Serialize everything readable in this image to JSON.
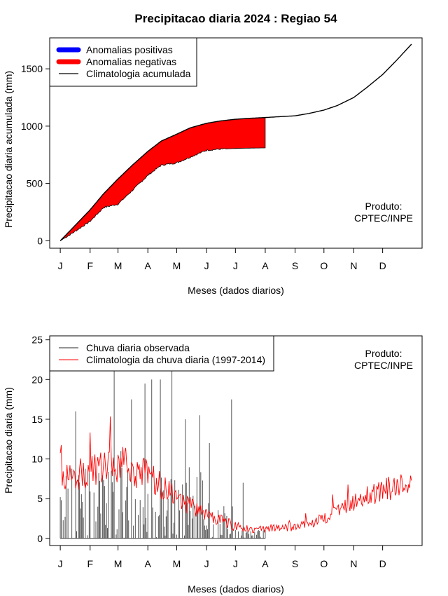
{
  "title": "Precipitacao diaria 2024 : Regiao 54",
  "month_ticks": [
    "J",
    "F",
    "M",
    "A",
    "M",
    "J",
    "J",
    "A",
    "S",
    "O",
    "N",
    "D"
  ],
  "colors": {
    "positive": "#0000ff",
    "negative": "#ff0000",
    "line": "#000000",
    "obs": "#555555",
    "clim": "#ff0000"
  },
  "chart_data": [
    {
      "type": "area",
      "title": "Precipitacao diaria 2024 : Regiao 54",
      "xlabel": "Meses (dados diarios)",
      "ylabel": "Precipitacao diaria acumulada (mm)",
      "yticks": [
        0,
        500,
        1000,
        1500
      ],
      "ylim": [
        -65,
        1770
      ],
      "xlim": [
        -11,
        376
      ],
      "legend": [
        "Anomalias positivas",
        "Anomalias negativas",
        "Climatologia acumulada"
      ],
      "legend_position": "top-left",
      "annotation": [
        "Produto:",
        "CPTEC/INPE"
      ],
      "climatology_cumulative": {
        "days": [
          0,
          15,
          31,
          45,
          60,
          75,
          91,
          105,
          121,
          135,
          152,
          166,
          182,
          196,
          213,
          227,
          244,
          258,
          274,
          288,
          305,
          319,
          335,
          349,
          365
        ],
        "values": [
          0,
          130,
          270,
          410,
          540,
          660,
          780,
          870,
          930,
          985,
          1025,
          1045,
          1060,
          1068,
          1075,
          1082,
          1090,
          1110,
          1140,
          1180,
          1250,
          1340,
          1450,
          1570,
          1715
        ]
      },
      "observed_cumulative": {
        "days": [
          0,
          15,
          31,
          45,
          60,
          75,
          91,
          105,
          121,
          135,
          152,
          166,
          182,
          196,
          213
        ],
        "values": [
          0,
          80,
          170,
          290,
          320,
          440,
          570,
          660,
          680,
          730,
          790,
          800,
          805,
          808,
          810
        ]
      }
    },
    {
      "type": "line",
      "xlabel": "Meses (dados diarios)",
      "ylabel": "Precipitacao diaria (mm)",
      "yticks": [
        0,
        5,
        10,
        15,
        20,
        25
      ],
      "ylim": [
        -0.9,
        25.5
      ],
      "xlim": [
        -11,
        376
      ],
      "legend": [
        "Chuva diaria observada",
        "Climatologia da chuva diaria (1997-2014)"
      ],
      "legend_position": "top-left",
      "annotation": [
        "Produto:",
        "CPTEC/INPE"
      ],
      "climatology_profile": {
        "days": [
          0,
          31,
          60,
          91,
          121,
          152,
          182,
          213,
          244,
          274,
          305,
          335,
          365
        ],
        "values": [
          7.5,
          8.5,
          9.0,
          8.0,
          5.0,
          3.0,
          1.5,
          1.0,
          1.5,
          2.5,
          4.5,
          6.0,
          7.5
        ]
      },
      "observed_spikes": {
        "days": [
          16,
          56,
          63,
          74,
          88,
          95,
          104,
          116,
          130,
          145,
          155,
          178,
          190
        ],
        "values": [
          16,
          21.5,
          11,
          17.5,
          19.5,
          20,
          20,
          21.5,
          15,
          15.5,
          12,
          17.5,
          7
        ]
      },
      "observed_range_days": [
        0,
        213
      ]
    }
  ]
}
